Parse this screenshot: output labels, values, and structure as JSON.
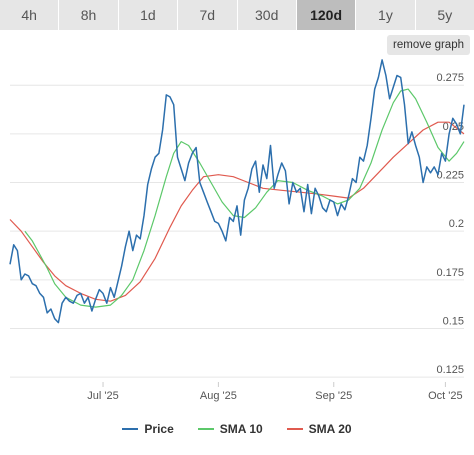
{
  "tabs": [
    {
      "label": "4h"
    },
    {
      "label": "8h"
    },
    {
      "label": "1d"
    },
    {
      "label": "7d"
    },
    {
      "label": "30d"
    },
    {
      "label": "120d",
      "active": true
    },
    {
      "label": "1y"
    },
    {
      "label": "5y"
    }
  ],
  "remove_graph_label": "remove graph",
  "colors": {
    "price": "#2c6fad",
    "sma10": "#5cc86a",
    "sma20": "#e05a4f",
    "grid": "#e6e6e6"
  },
  "chart_data": {
    "type": "line",
    "title": "",
    "xlabel": "",
    "ylabel": "",
    "x_range": [
      "2025-06-06",
      "2025-10-06"
    ],
    "ylim": [
      0.1225,
      0.29
    ],
    "grid": true,
    "legend_position": "bottom",
    "y_ticks": [
      "0.125",
      "0.15",
      "0.175",
      "0.2",
      "0.225",
      "0.25",
      "0.275"
    ],
    "x_ticks": [
      {
        "date": "2025-07-01",
        "label": "Jul '25"
      },
      {
        "date": "2025-08-01",
        "label": "Aug '25"
      },
      {
        "date": "2025-09-01",
        "label": "Sep '25"
      },
      {
        "date": "2025-10-01",
        "label": "Oct '25"
      }
    ],
    "series": [
      {
        "name": "Price",
        "key": "price",
        "points": [
          [
            "2025-06-06",
            0.183
          ],
          [
            "2025-06-07",
            0.193
          ],
          [
            "2025-06-08",
            0.19
          ],
          [
            "2025-06-09",
            0.175
          ],
          [
            "2025-06-10",
            0.178
          ],
          [
            "2025-06-11",
            0.177
          ],
          [
            "2025-06-12",
            0.173
          ],
          [
            "2025-06-13",
            0.172
          ],
          [
            "2025-06-14",
            0.168
          ],
          [
            "2025-06-15",
            0.166
          ],
          [
            "2025-06-16",
            0.158
          ],
          [
            "2025-06-17",
            0.16
          ],
          [
            "2025-06-18",
            0.155
          ],
          [
            "2025-06-19",
            0.153
          ],
          [
            "2025-06-20",
            0.163
          ],
          [
            "2025-06-21",
            0.166
          ],
          [
            "2025-06-22",
            0.164
          ],
          [
            "2025-06-23",
            0.163
          ],
          [
            "2025-06-24",
            0.167
          ],
          [
            "2025-06-25",
            0.168
          ],
          [
            "2025-06-26",
            0.163
          ],
          [
            "2025-06-27",
            0.166
          ],
          [
            "2025-06-28",
            0.159
          ],
          [
            "2025-06-29",
            0.165
          ],
          [
            "2025-06-30",
            0.17
          ],
          [
            "2025-07-01",
            0.168
          ],
          [
            "2025-07-02",
            0.163
          ],
          [
            "2025-07-03",
            0.171
          ],
          [
            "2025-07-04",
            0.166
          ],
          [
            "2025-07-05",
            0.174
          ],
          [
            "2025-07-06",
            0.182
          ],
          [
            "2025-07-07",
            0.192
          ],
          [
            "2025-07-08",
            0.2
          ],
          [
            "2025-07-09",
            0.19
          ],
          [
            "2025-07-10",
            0.198
          ],
          [
            "2025-07-11",
            0.196
          ],
          [
            "2025-07-12",
            0.208
          ],
          [
            "2025-07-13",
            0.224
          ],
          [
            "2025-07-14",
            0.232
          ],
          [
            "2025-07-15",
            0.238
          ],
          [
            "2025-07-16",
            0.24
          ],
          [
            "2025-07-17",
            0.252
          ],
          [
            "2025-07-18",
            0.27
          ],
          [
            "2025-07-19",
            0.269
          ],
          [
            "2025-07-20",
            0.265
          ],
          [
            "2025-07-21",
            0.238
          ],
          [
            "2025-07-22",
            0.232
          ],
          [
            "2025-07-23",
            0.226
          ],
          [
            "2025-07-24",
            0.235
          ],
          [
            "2025-07-25",
            0.24
          ],
          [
            "2025-07-26",
            0.243
          ],
          [
            "2025-07-27",
            0.225
          ],
          [
            "2025-07-28",
            0.22
          ],
          [
            "2025-07-29",
            0.215
          ],
          [
            "2025-07-30",
            0.21
          ],
          [
            "2025-07-31",
            0.205
          ],
          [
            "2025-08-01",
            0.204
          ],
          [
            "2025-08-02",
            0.2
          ],
          [
            "2025-08-03",
            0.195
          ],
          [
            "2025-08-04",
            0.207
          ],
          [
            "2025-08-05",
            0.205
          ],
          [
            "2025-08-06",
            0.213
          ],
          [
            "2025-08-07",
            0.198
          ],
          [
            "2025-08-08",
            0.216
          ],
          [
            "2025-08-09",
            0.222
          ],
          [
            "2025-08-10",
            0.232
          ],
          [
            "2025-08-11",
            0.236
          ],
          [
            "2025-08-12",
            0.22
          ],
          [
            "2025-08-13",
            0.234
          ],
          [
            "2025-08-14",
            0.227
          ],
          [
            "2025-08-15",
            0.244
          ],
          [
            "2025-08-16",
            0.222
          ],
          [
            "2025-08-17",
            0.229
          ],
          [
            "2025-08-18",
            0.235
          ],
          [
            "2025-08-19",
            0.231
          ],
          [
            "2025-08-20",
            0.214
          ],
          [
            "2025-08-21",
            0.225
          ],
          [
            "2025-08-22",
            0.22
          ],
          [
            "2025-08-23",
            0.222
          ],
          [
            "2025-08-24",
            0.21
          ],
          [
            "2025-08-25",
            0.224
          ],
          [
            "2025-08-26",
            0.209
          ],
          [
            "2025-08-27",
            0.222
          ],
          [
            "2025-08-28",
            0.218
          ],
          [
            "2025-08-29",
            0.212
          ],
          [
            "2025-08-30",
            0.21
          ],
          [
            "2025-08-31",
            0.216
          ],
          [
            "2025-09-01",
            0.215
          ],
          [
            "2025-09-02",
            0.208
          ],
          [
            "2025-09-03",
            0.214
          ],
          [
            "2025-09-04",
            0.211
          ],
          [
            "2025-09-05",
            0.218
          ],
          [
            "2025-09-06",
            0.227
          ],
          [
            "2025-09-07",
            0.225
          ],
          [
            "2025-09-08",
            0.238
          ],
          [
            "2025-09-09",
            0.236
          ],
          [
            "2025-09-10",
            0.244
          ],
          [
            "2025-09-11",
            0.258
          ],
          [
            "2025-09-12",
            0.273
          ],
          [
            "2025-09-13",
            0.279
          ],
          [
            "2025-09-14",
            0.288
          ],
          [
            "2025-09-15",
            0.28
          ],
          [
            "2025-09-16",
            0.268
          ],
          [
            "2025-09-17",
            0.274
          ],
          [
            "2025-09-18",
            0.28
          ],
          [
            "2025-09-19",
            0.279
          ],
          [
            "2025-09-20",
            0.265
          ],
          [
            "2025-09-21",
            0.245
          ],
          [
            "2025-09-22",
            0.251
          ],
          [
            "2025-09-23",
            0.244
          ],
          [
            "2025-09-24",
            0.238
          ],
          [
            "2025-09-25",
            0.225
          ],
          [
            "2025-09-26",
            0.233
          ],
          [
            "2025-09-27",
            0.23
          ],
          [
            "2025-09-28",
            0.233
          ],
          [
            "2025-09-29",
            0.229
          ],
          [
            "2025-09-30",
            0.24
          ],
          [
            "2025-10-01",
            0.236
          ],
          [
            "2025-10-02",
            0.25
          ],
          [
            "2025-10-03",
            0.258
          ],
          [
            "2025-10-04",
            0.255
          ],
          [
            "2025-10-05",
            0.25
          ],
          [
            "2025-10-06",
            0.265
          ]
        ]
      },
      {
        "name": "SMA 10",
        "key": "sma10",
        "points": [
          [
            "2025-06-10",
            0.2
          ],
          [
            "2025-06-12",
            0.195
          ],
          [
            "2025-06-14",
            0.188
          ],
          [
            "2025-06-16",
            0.181
          ],
          [
            "2025-06-18",
            0.173
          ],
          [
            "2025-06-21",
            0.166
          ],
          [
            "2025-06-25",
            0.162
          ],
          [
            "2025-06-29",
            0.161
          ],
          [
            "2025-07-03",
            0.162
          ],
          [
            "2025-07-06",
            0.167
          ],
          [
            "2025-07-09",
            0.175
          ],
          [
            "2025-07-12",
            0.19
          ],
          [
            "2025-07-15",
            0.208
          ],
          [
            "2025-07-18",
            0.228
          ],
          [
            "2025-07-20",
            0.24
          ],
          [
            "2025-07-22",
            0.246
          ],
          [
            "2025-07-24",
            0.244
          ],
          [
            "2025-07-27",
            0.235
          ],
          [
            "2025-07-30",
            0.225
          ],
          [
            "2025-08-02",
            0.215
          ],
          [
            "2025-08-05",
            0.208
          ],
          [
            "2025-08-08",
            0.207
          ],
          [
            "2025-08-11",
            0.212
          ],
          [
            "2025-08-14",
            0.22
          ],
          [
            "2025-08-17",
            0.226
          ],
          [
            "2025-08-21",
            0.225
          ],
          [
            "2025-08-25",
            0.221
          ],
          [
            "2025-08-29",
            0.218
          ],
          [
            "2025-09-02",
            0.214
          ],
          [
            "2025-09-05",
            0.216
          ],
          [
            "2025-09-08",
            0.222
          ],
          [
            "2025-09-11",
            0.235
          ],
          [
            "2025-09-14",
            0.252
          ],
          [
            "2025-09-17",
            0.266
          ],
          [
            "2025-09-19",
            0.272
          ],
          [
            "2025-09-21",
            0.273
          ],
          [
            "2025-09-23",
            0.268
          ],
          [
            "2025-09-26",
            0.256
          ],
          [
            "2025-09-29",
            0.243
          ],
          [
            "2025-10-02",
            0.236
          ],
          [
            "2025-10-04",
            0.24
          ],
          [
            "2025-10-06",
            0.246
          ]
        ]
      },
      {
        "name": "SMA 20",
        "key": "sma20",
        "points": [
          [
            "2025-06-06",
            0.206
          ],
          [
            "2025-06-09",
            0.2
          ],
          [
            "2025-06-12",
            0.192
          ],
          [
            "2025-06-15",
            0.184
          ],
          [
            "2025-06-18",
            0.177
          ],
          [
            "2025-06-21",
            0.172
          ],
          [
            "2025-06-25",
            0.168
          ],
          [
            "2025-06-29",
            0.165
          ],
          [
            "2025-07-03",
            0.164
          ],
          [
            "2025-07-07",
            0.167
          ],
          [
            "2025-07-11",
            0.174
          ],
          [
            "2025-07-15",
            0.186
          ],
          [
            "2025-07-19",
            0.202
          ],
          [
            "2025-07-22",
            0.213
          ],
          [
            "2025-07-25",
            0.221
          ],
          [
            "2025-07-28",
            0.228
          ],
          [
            "2025-08-01",
            0.229
          ],
          [
            "2025-08-05",
            0.228
          ],
          [
            "2025-08-09",
            0.225
          ],
          [
            "2025-08-13",
            0.222
          ],
          [
            "2025-08-18",
            0.221
          ],
          [
            "2025-08-23",
            0.22
          ],
          [
            "2025-08-28",
            0.219
          ],
          [
            "2025-09-01",
            0.218
          ],
          [
            "2025-09-05",
            0.217
          ],
          [
            "2025-09-09",
            0.222
          ],
          [
            "2025-09-13",
            0.23
          ],
          [
            "2025-09-17",
            0.238
          ],
          [
            "2025-09-21",
            0.245
          ],
          [
            "2025-09-25",
            0.252
          ],
          [
            "2025-09-29",
            0.256
          ],
          [
            "2025-10-02",
            0.256
          ],
          [
            "2025-10-06",
            0.25
          ]
        ]
      }
    ]
  }
}
